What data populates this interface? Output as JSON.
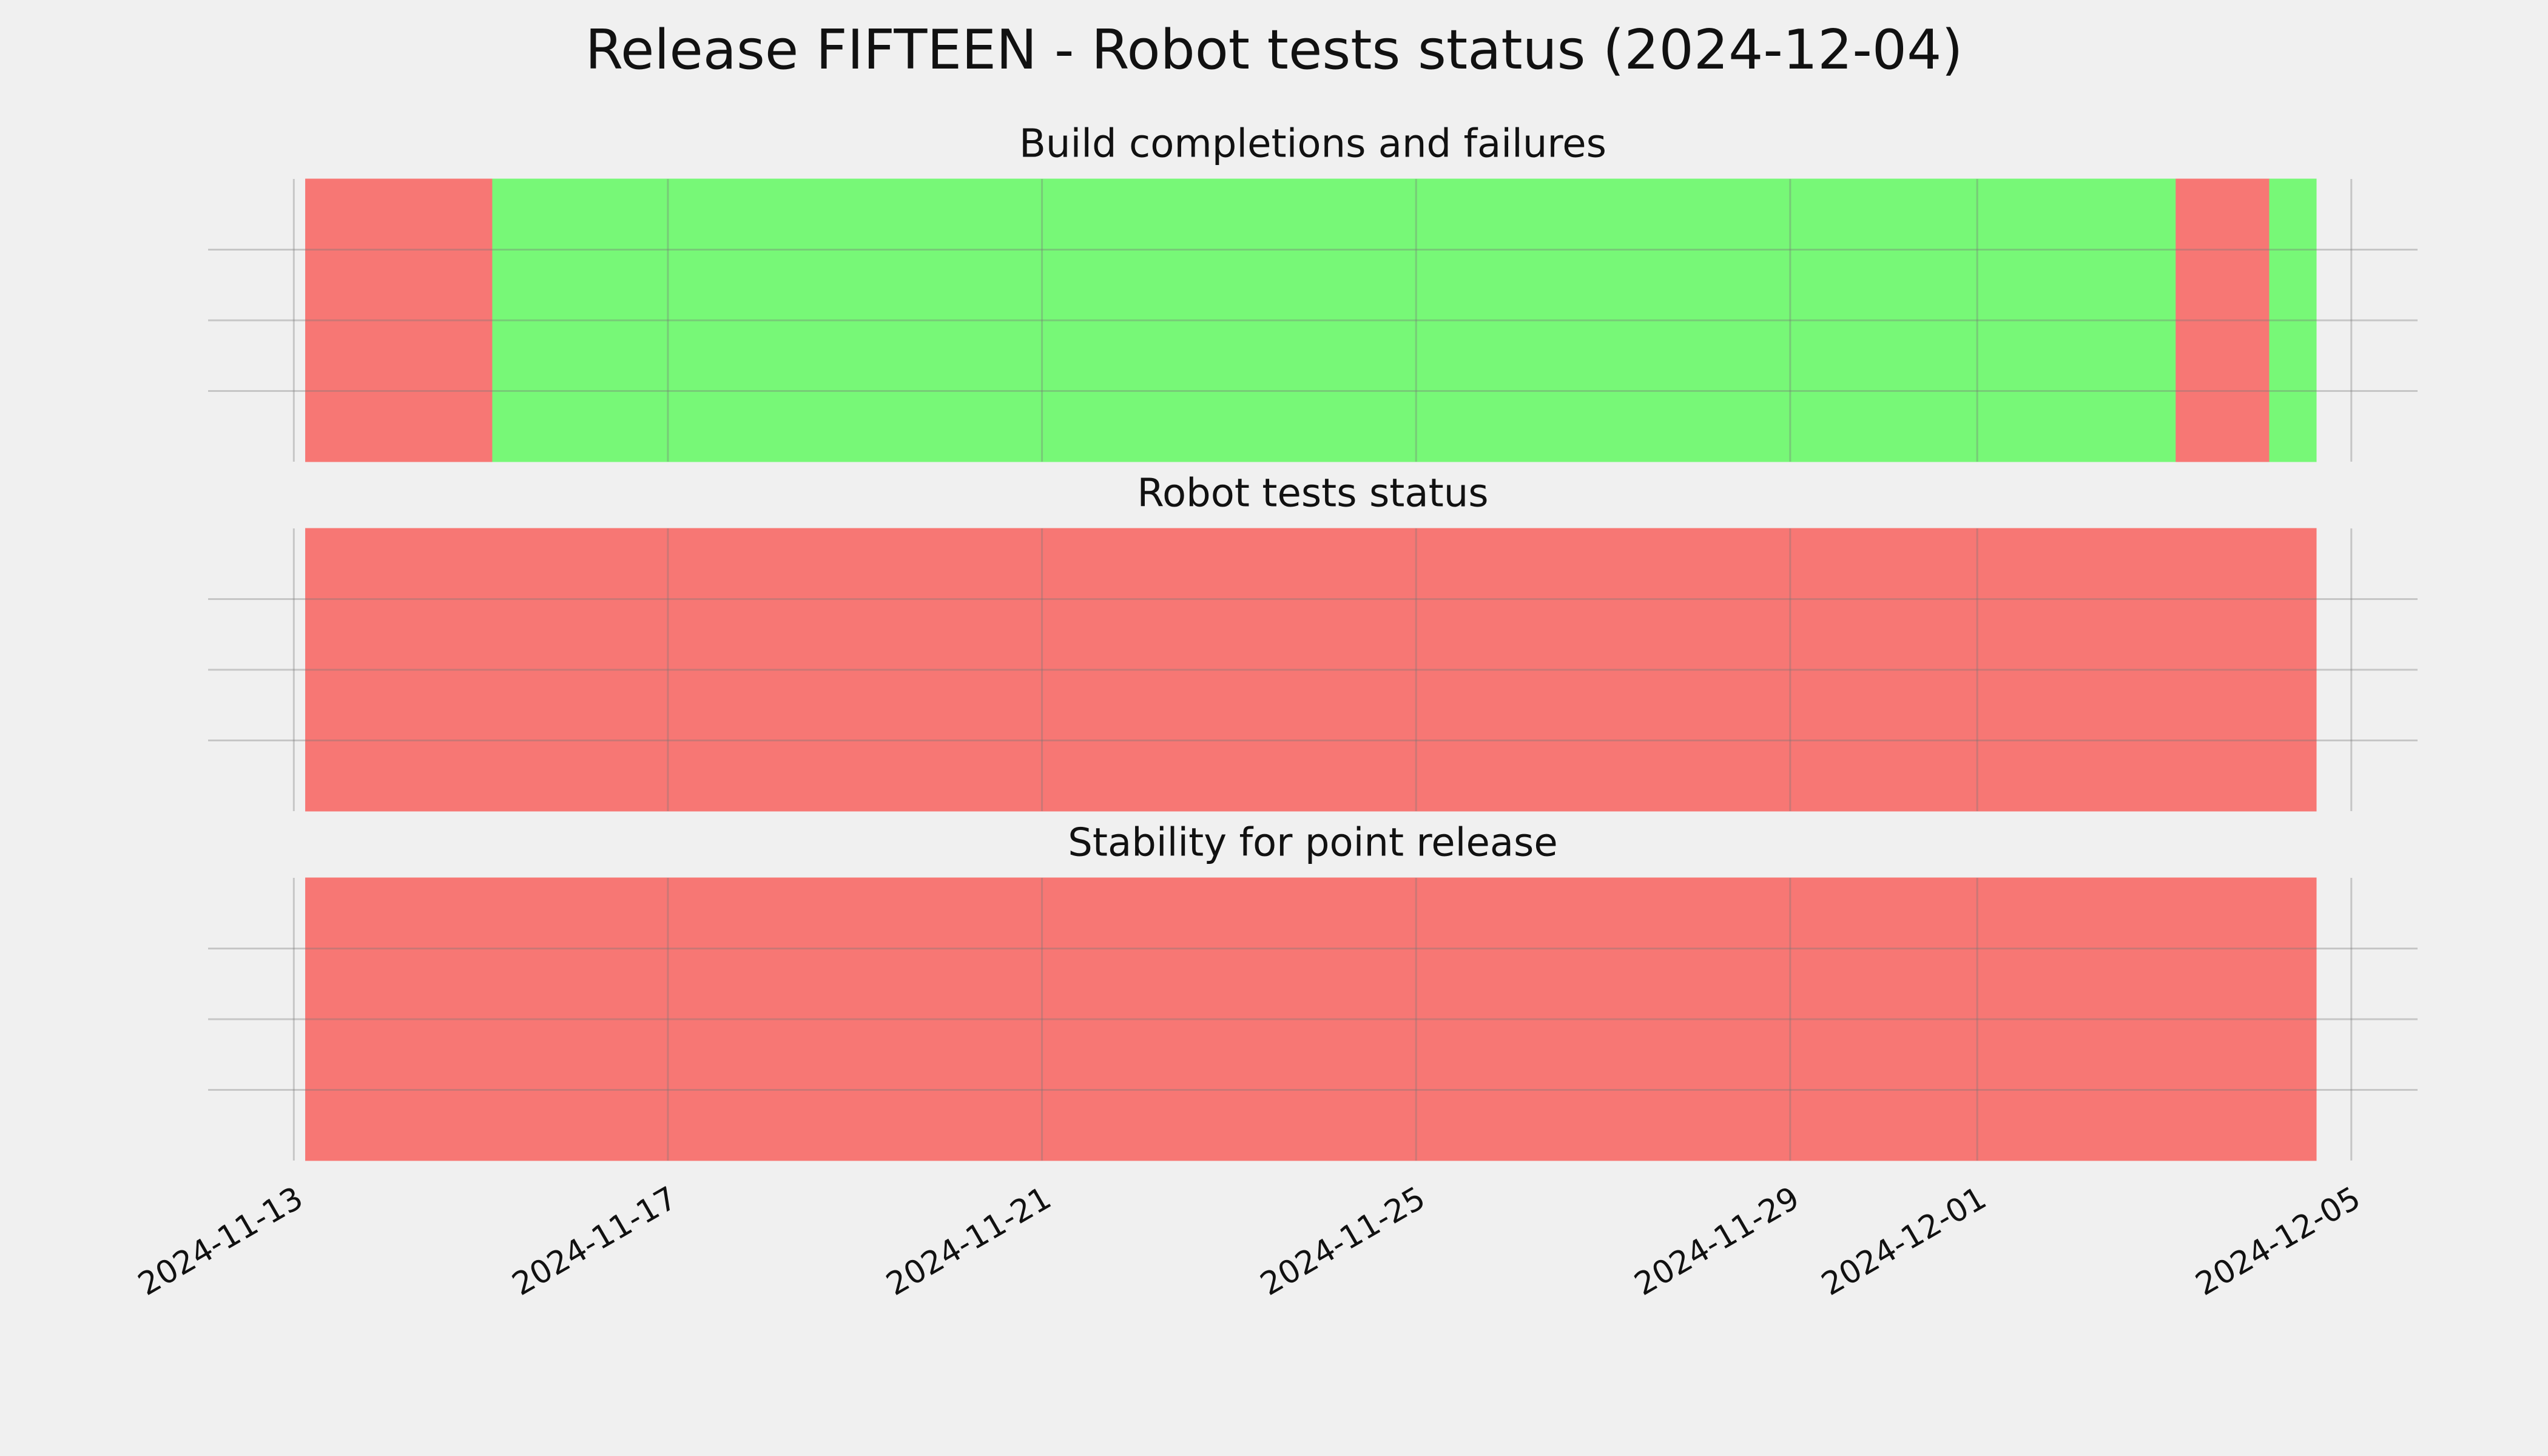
{
  "title": "Release FIFTEEN - Robot tests status (2024-12-04)",
  "chart_data": [
    {
      "type": "timeline",
      "title": "Build completions and failures",
      "segments": [
        {
          "start": "2024-11-13T03:00",
          "end": "2024-11-15T03:00",
          "color": "#f77774"
        },
        {
          "start": "2024-11-15T03:00",
          "end": "2024-12-03T03:00",
          "color": "#77f877"
        },
        {
          "start": "2024-12-03T03:00",
          "end": "2024-12-04T03:00",
          "color": "#f77774"
        },
        {
          "start": "2024-12-04T03:00",
          "end": "2024-12-04T15:00",
          "color": "#77f877"
        }
      ],
      "xlim": [
        "2024-11-12T02:00",
        "2024-12-05T17:00"
      ],
      "xticks": [
        "2024-11-13",
        "2024-11-17",
        "2024-11-21",
        "2024-11-25",
        "2024-11-29",
        "2024-12-01",
        "2024-12-05"
      ],
      "ylim": [
        0,
        1
      ],
      "yticks": [
        0.25,
        0.5,
        0.75
      ],
      "grid": true
    },
    {
      "type": "timeline",
      "title": "Robot tests status",
      "segments": [
        {
          "start": "2024-11-13T03:00",
          "end": "2024-12-04T15:00",
          "color": "#f77774"
        }
      ],
      "xlim": [
        "2024-11-12T02:00",
        "2024-12-05T17:00"
      ],
      "xticks": [
        "2024-11-13",
        "2024-11-17",
        "2024-11-21",
        "2024-11-25",
        "2024-11-29",
        "2024-12-01",
        "2024-12-05"
      ],
      "ylim": [
        0,
        1
      ],
      "yticks": [
        0.25,
        0.5,
        0.75
      ],
      "grid": true
    },
    {
      "type": "timeline",
      "title": "Stability for point release",
      "segments": [
        {
          "start": "2024-11-13T03:00",
          "end": "2024-12-04T15:00",
          "color": "#f77774"
        }
      ],
      "xlim": [
        "2024-11-12T02:00",
        "2024-12-05T17:00"
      ],
      "xticks": [
        "2024-11-13",
        "2024-11-17",
        "2024-11-21",
        "2024-11-25",
        "2024-11-29",
        "2024-12-01",
        "2024-12-05"
      ],
      "ylim": [
        0,
        1
      ],
      "yticks": [
        0.25,
        0.5,
        0.75
      ],
      "grid": true
    }
  ]
}
